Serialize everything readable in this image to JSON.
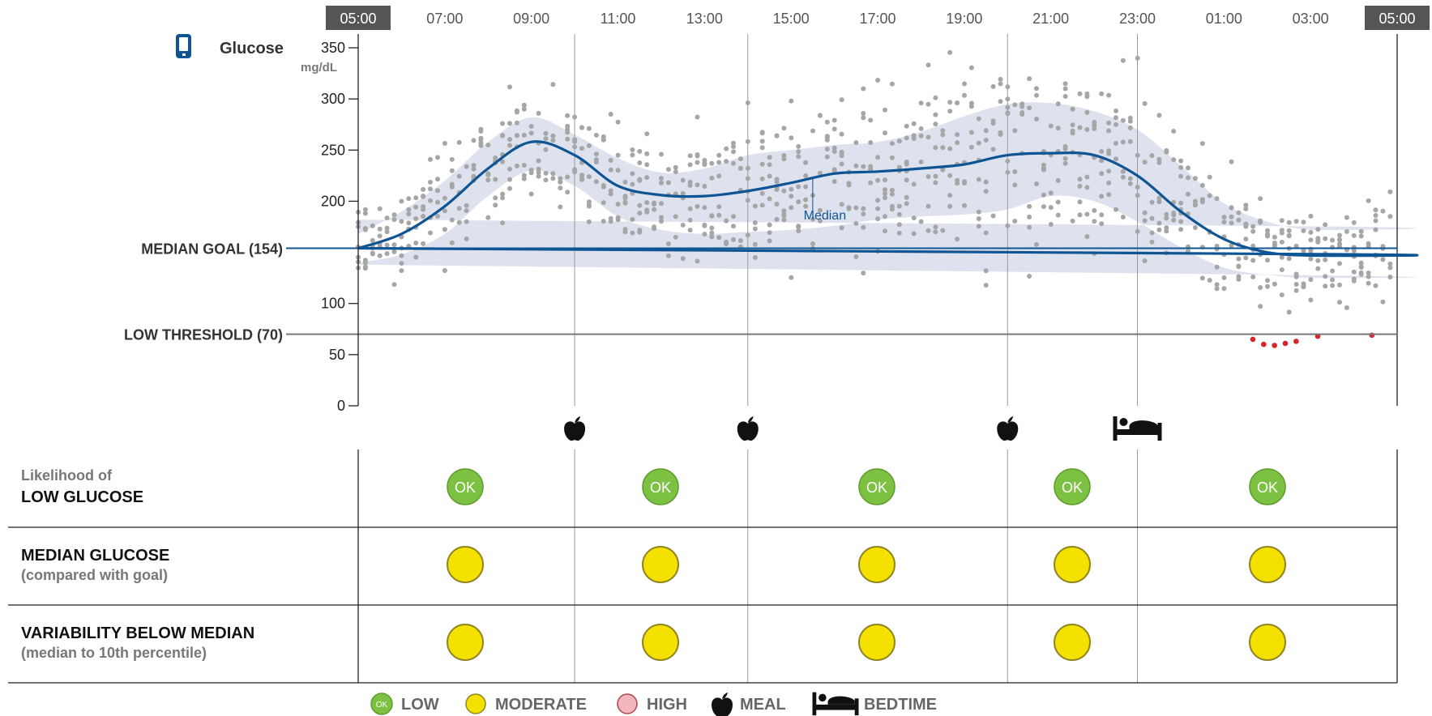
{
  "header": {
    "glucose_label": "Glucose",
    "unit_label": "mg/dL",
    "device_icon": "glucose-meter-icon",
    "hour_labels": [
      "05:00",
      "07:00",
      "09:00",
      "11:00",
      "13:00",
      "15:00",
      "17:00",
      "19:00",
      "21:00",
      "23:00",
      "01:00",
      "03:00",
      "05:00"
    ],
    "boxed_hours": [
      0,
      12
    ]
  },
  "colors": {
    "median_line": "#0f5593",
    "band": "#dde2ee",
    "dots": "#a6a6a6",
    "low_dots": "#d8232a",
    "ok": "#7cc142",
    "moderate": "#f5e100",
    "high": "#f4b6bd",
    "threshold_line": "#777777",
    "goal_line": "#0f5593",
    "hour_box": "#555555"
  },
  "chart_data": {
    "type": "scatter",
    "title": "",
    "x_unit": "hour of day (05:00 to 05:00 next day)",
    "xlabel": "",
    "ylabel": "Glucose",
    "y_unit": "mg/dL",
    "ylim": [
      0,
      350
    ],
    "yticks": [
      0,
      50,
      100,
      200,
      250,
      300,
      350
    ],
    "reference_lines": [
      {
        "name": "median-goal",
        "label": "MEDIAN GOAL (154)",
        "value": 154
      },
      {
        "name": "low-threshold",
        "label": "LOW THRESHOLD (70)",
        "value": 70
      }
    ],
    "median_label": "Median",
    "median": {
      "x": [
        "05:00",
        "06:00",
        "07:00",
        "08:00",
        "09:00",
        "10:00",
        "11:00",
        "12:00",
        "13:00",
        "14:00",
        "15:00",
        "16:00",
        "17:00",
        "18:00",
        "19:00",
        "20:00",
        "21:00",
        "22:00",
        "23:00",
        "00:00",
        "01:00",
        "02:00",
        "03:00",
        "04:00",
        "05:00"
      ],
      "y": [
        154,
        168,
        195,
        232,
        258,
        245,
        215,
        206,
        205,
        210,
        218,
        227,
        229,
        232,
        236,
        245,
        247,
        245,
        225,
        190,
        163,
        150,
        147,
        148,
        154
      ]
    },
    "band_10th": [
      140,
      148,
      168,
      205,
      230,
      215,
      185,
      172,
      168,
      170,
      172,
      176,
      182,
      185,
      187,
      192,
      205,
      200,
      180,
      155,
      135,
      128,
      125,
      127,
      138
    ],
    "band_90th": [
      168,
      190,
      220,
      258,
      282,
      265,
      242,
      228,
      232,
      245,
      250,
      255,
      258,
      268,
      283,
      295,
      296,
      288,
      270,
      235,
      198,
      180,
      172,
      175,
      182
    ],
    "low_readings": [
      {
        "x": "01:40",
        "y": 65
      },
      {
        "x": "01:55",
        "y": 60
      },
      {
        "x": "02:10",
        "y": 59
      },
      {
        "x": "02:25",
        "y": 61
      },
      {
        "x": "02:40",
        "y": 63
      },
      {
        "x": "03:10",
        "y": 68
      },
      {
        "x": "04:25",
        "y": 69
      }
    ],
    "events": [
      {
        "type": "meal",
        "time": "10:00"
      },
      {
        "type": "meal",
        "time": "14:00"
      },
      {
        "type": "meal",
        "time": "20:00"
      },
      {
        "type": "bedtime",
        "time": "23:00"
      }
    ],
    "dividers": [
      "10:00",
      "14:00",
      "20:00",
      "23:00"
    ]
  },
  "indicator_rows": [
    {
      "title_top": "Likelihood of",
      "title": "LOW GLUCOSE",
      "status": [
        "ok",
        "ok",
        "ok",
        "ok",
        "ok"
      ],
      "ok_text": "OK"
    },
    {
      "title": "MEDIAN GLUCOSE",
      "subtitle": "(compared with goal)",
      "status": [
        "moderate",
        "moderate",
        "moderate",
        "moderate",
        "moderate"
      ]
    },
    {
      "title": "VARIABILITY BELOW MEDIAN",
      "subtitle": "(median to 10th percentile)",
      "status": [
        "moderate",
        "moderate",
        "moderate",
        "moderate",
        "moderate"
      ]
    }
  ],
  "legend": {
    "items": [
      {
        "label": "LOW",
        "icon": "ok-circle-icon",
        "badge": "OK"
      },
      {
        "label": "MODERATE",
        "icon": "moderate-circle-icon"
      },
      {
        "label": "HIGH",
        "icon": "high-circle-icon"
      },
      {
        "label": "MEAL",
        "icon": "apple-icon"
      },
      {
        "label": "BEDTIME",
        "icon": "bed-icon"
      }
    ]
  }
}
